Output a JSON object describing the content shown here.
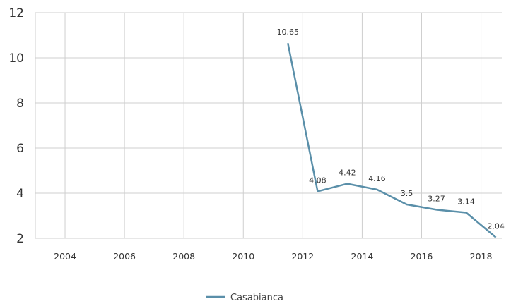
{
  "chart_data": {
    "type": "line",
    "title": "",
    "xlabel": "",
    "ylabel": "",
    "xlim": [
      2003,
      2018.7
    ],
    "ylim": [
      2,
      12
    ],
    "x_ticks": [
      2004,
      2006,
      2008,
      2010,
      2012,
      2014,
      2016,
      2018
    ],
    "y_ticks": [
      2,
      4,
      6,
      8,
      10,
      12
    ],
    "grid": true,
    "legend_position": "bottom-center",
    "series": [
      {
        "name": "Casabianca",
        "color": "#5a8fa9",
        "x": [
          2011.5,
          2012.5,
          2013.5,
          2014.5,
          2015.5,
          2016.5,
          2017.5,
          2018.5
        ],
        "values": [
          10.65,
          4.08,
          4.42,
          4.16,
          3.5,
          3.27,
          3.14,
          2.04
        ],
        "labels": [
          "10.65",
          "4.08",
          "4.42",
          "4.16",
          "3.5",
          "3.27",
          "3.14",
          "2.04"
        ]
      }
    ]
  }
}
